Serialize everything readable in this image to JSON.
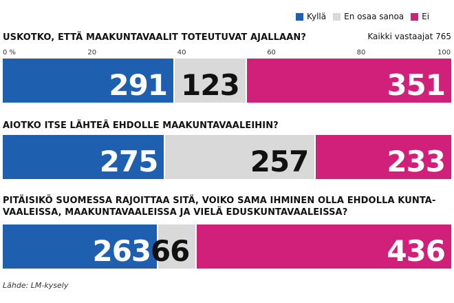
{
  "legend": [
    {
      "label": "Kyllä",
      "color": "#1f5fb0"
    },
    {
      "label": "En osaa sanoa",
      "color": "#d9d9d9"
    },
    {
      "label": "Ei",
      "color": "#d0207a"
    }
  ],
  "respondents_label": "Kaikki vastaajat 765",
  "source": "Lähde: LM-kysely",
  "chart_data": {
    "type": "bar",
    "orientation": "horizontal-stacked",
    "xlim": [
      0,
      100
    ],
    "x_ticks": [
      "0 %",
      "20",
      "40",
      "60",
      "80",
      "100"
    ],
    "series_names": [
      "Kyllä",
      "En osaa sanoa",
      "Ei"
    ],
    "questions": [
      {
        "text": "USKOTKO, ETTÄ MAAKUNTAVAALIT TOTEUTUVAT AJALLAAN?",
        "values": [
          291,
          123,
          351
        ]
      },
      {
        "text": "AIOTKO ITSE LÄHTEÄ EHDOLLE MAAKUNTAVAALEIHIN?",
        "values": [
          275,
          257,
          233
        ]
      },
      {
        "text": "PITÄISIKÖ SUOMESSA RAJOITTAA SITÄ, VOIKO SAMA IHMINEN OLLA EHDOLLA KUNTA-\nVAALEISSA, MAAKUNTAVAALEISSA JA VIELÄ EDUSKUNTAVAALEISSA?",
        "values": [
          263,
          66,
          436
        ]
      }
    ]
  }
}
